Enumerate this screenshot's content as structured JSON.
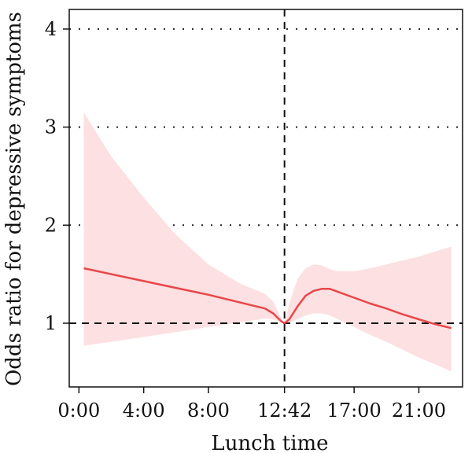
{
  "chart_data": {
    "type": "line",
    "xlabel": "Lunch time",
    "ylabel": "Odds ratio for depressive symptoms",
    "x_ticks": [
      {
        "value": 0,
        "label": "0:00"
      },
      {
        "value": 4,
        "label": "4:00"
      },
      {
        "value": 8,
        "label": "8:00"
      },
      {
        "value": 12.7,
        "label": "12:42"
      },
      {
        "value": 17,
        "label": "17:00"
      },
      {
        "value": 21,
        "label": "21:00"
      }
    ],
    "y_ticks": [
      {
        "value": 1,
        "label": "1"
      },
      {
        "value": 2,
        "label": "2"
      },
      {
        "value": 3,
        "label": "3"
      },
      {
        "value": 4,
        "label": "4"
      }
    ],
    "xlim": [
      -0.6,
      23.7
    ],
    "ylim": [
      0.35,
      4.2
    ],
    "reference_lines": {
      "x": 12.7,
      "y": 1
    },
    "grid": {
      "horizontal_dotted": [
        2,
        3,
        4
      ]
    },
    "colors": {
      "line": "#e8474a",
      "band": "#fde0e1"
    },
    "series": [
      {
        "x": [
          0.3,
          2,
          4,
          6,
          8,
          10,
          11.5,
          12,
          12.5,
          12.7,
          13,
          13.5,
          14,
          14.5,
          15,
          15.5,
          16,
          17,
          18,
          19,
          20,
          21,
          22,
          23
        ],
        "y": [
          1.56,
          1.5,
          1.43,
          1.36,
          1.29,
          1.21,
          1.15,
          1.1,
          1.02,
          1.0,
          1.04,
          1.17,
          1.28,
          1.33,
          1.35,
          1.35,
          1.32,
          1.26,
          1.2,
          1.15,
          1.09,
          1.04,
          0.99,
          0.95
        ],
        "lower": [
          0.77,
          0.81,
          0.86,
          0.91,
          0.96,
          1.01,
          1.05,
          1.04,
          1.01,
          1.0,
          1.0,
          1.04,
          1.08,
          1.1,
          1.1,
          1.08,
          1.04,
          0.96,
          0.88,
          0.81,
          0.73,
          0.65,
          0.58,
          0.51
        ],
        "upper": [
          3.15,
          2.7,
          2.28,
          1.9,
          1.6,
          1.4,
          1.3,
          1.22,
          1.05,
          1.0,
          1.2,
          1.45,
          1.56,
          1.6,
          1.59,
          1.55,
          1.53,
          1.53,
          1.56,
          1.6,
          1.64,
          1.68,
          1.73,
          1.78
        ]
      }
    ]
  }
}
